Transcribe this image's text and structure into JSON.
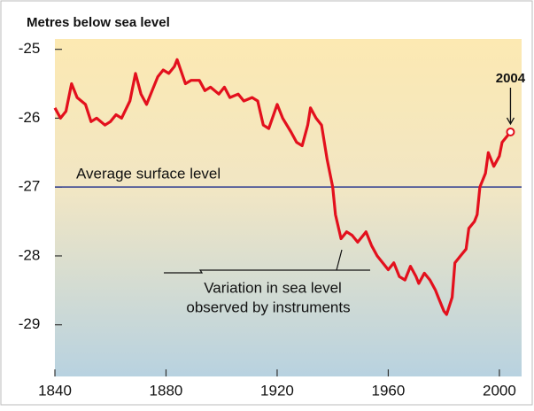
{
  "chart_data": {
    "type": "line",
    "title": "Metres below sea level",
    "x": [
      1840,
      1842,
      1844,
      1846,
      1848,
      1851,
      1853,
      1855,
      1858,
      1860,
      1862,
      1864,
      1867,
      1869,
      1871,
      1873,
      1875,
      1877,
      1879,
      1881,
      1883,
      1884,
      1887,
      1889,
      1892,
      1894,
      1896,
      1899,
      1901,
      1903,
      1906,
      1908,
      1911,
      1913,
      1915,
      1917,
      1920,
      1922,
      1925,
      1927,
      1929,
      1931,
      1932,
      1934,
      1936,
      1938,
      1940,
      1941,
      1943,
      1945,
      1947,
      1949,
      1951,
      1952,
      1954,
      1956,
      1958,
      1960,
      1962,
      1964,
      1966,
      1968,
      1970,
      1971,
      1973,
      1975,
      1977,
      1978,
      1980,
      1981,
      1983,
      1984,
      1986,
      1988,
      1989,
      1991,
      1992,
      1993,
      1995,
      1996,
      1998,
      2000,
      2001,
      2004
    ],
    "values": [
      -25.85,
      -26.0,
      -25.9,
      -25.5,
      -25.7,
      -25.8,
      -26.05,
      -26.0,
      -26.1,
      -26.05,
      -25.95,
      -26.0,
      -25.75,
      -25.35,
      -25.65,
      -25.8,
      -25.6,
      -25.4,
      -25.3,
      -25.35,
      -25.25,
      -25.15,
      -25.5,
      -25.45,
      -25.45,
      -25.6,
      -25.55,
      -25.65,
      -25.55,
      -25.7,
      -25.65,
      -25.75,
      -25.7,
      -25.75,
      -26.1,
      -26.15,
      -25.8,
      -26.0,
      -26.2,
      -26.35,
      -26.4,
      -26.1,
      -25.85,
      -26.0,
      -26.1,
      -26.6,
      -27.0,
      -27.4,
      -27.75,
      -27.65,
      -27.7,
      -27.8,
      -27.7,
      -27.65,
      -27.85,
      -28.0,
      -28.1,
      -28.2,
      -28.1,
      -28.3,
      -28.35,
      -28.15,
      -28.3,
      -28.4,
      -28.25,
      -28.35,
      -28.5,
      -28.6,
      -28.8,
      -28.85,
      -28.6,
      -28.1,
      -28.0,
      -27.9,
      -27.6,
      -27.5,
      -27.4,
      -27.0,
      -26.8,
      -26.5,
      -26.7,
      -26.55,
      -26.35,
      -26.2
    ],
    "color": "#e3101d",
    "xlim": [
      1840,
      2008
    ],
    "ylim": [
      -29.75,
      -24.85
    ],
    "xticks": [
      1840,
      1880,
      1920,
      1960,
      2000
    ],
    "yticks": [
      -25,
      -26,
      -27,
      -28,
      -29
    ],
    "reference_line": {
      "value": -27,
      "label": "Average surface level",
      "color": "#2b3990"
    },
    "annotation": [
      "Variation in sea level",
      "observed by instruments"
    ],
    "end_label": "2004"
  }
}
